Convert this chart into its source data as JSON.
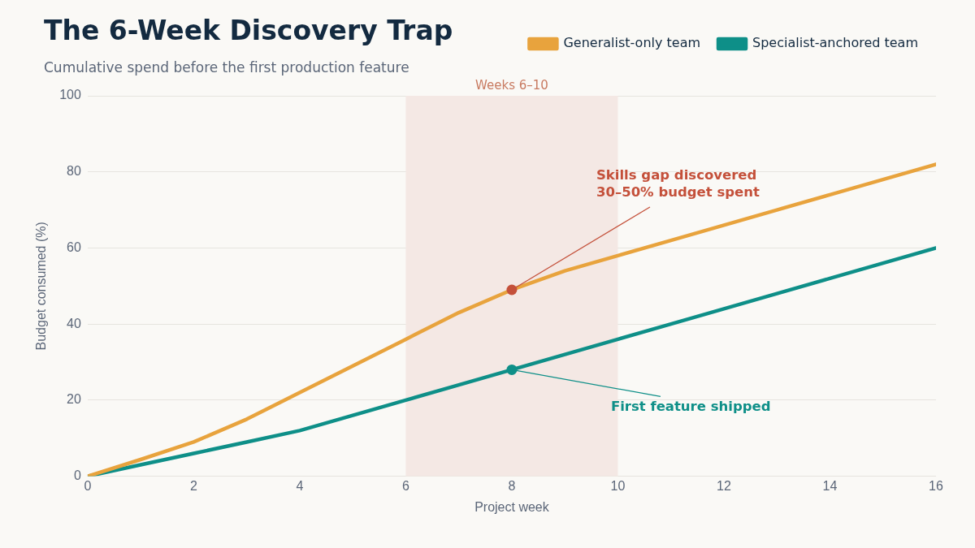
{
  "chart_data": {
    "type": "line",
    "title": "The 6-Week Discovery Trap",
    "subtitle": "Cumulative spend before the first production feature",
    "xlabel": "Project week",
    "ylabel": "Budget consumed (%)",
    "x": [
      0,
      1,
      2,
      3,
      4,
      5,
      6,
      7,
      8,
      9,
      10,
      11,
      12,
      13,
      14,
      15,
      16
    ],
    "series": [
      {
        "name": "Generalist-only team",
        "color": "#e8a33d",
        "values": [
          0,
          4.4,
          9,
          15,
          22,
          29,
          36,
          43,
          49,
          54,
          58,
          62,
          66,
          70,
          74,
          78,
          82
        ]
      },
      {
        "name": "Specialist-anchored team",
        "color": "#0e8f88",
        "values": [
          0,
          3,
          6,
          9,
          12,
          16,
          20,
          24,
          28,
          32,
          36,
          40,
          44,
          48,
          52,
          56,
          60
        ]
      }
    ],
    "xlim": [
      0,
      16
    ],
    "xticks": [
      0,
      2,
      4,
      6,
      8,
      10,
      12,
      14,
      16
    ],
    "ylim": [
      0,
      100
    ],
    "yticks": [
      0,
      20,
      40,
      60,
      80,
      100
    ],
    "bands": [
      {
        "axis": "x",
        "from": 6,
        "to": 10,
        "label": "Weeks 6–10",
        "color": "#f4e8e4"
      }
    ],
    "annotations": [
      {
        "text": "Skills gap discovered\n30–50% budget spent",
        "x": 8,
        "y": 49
      },
      {
        "text": "First feature shipped",
        "x": 8,
        "y": 28
      }
    ],
    "grid": "y",
    "legend": "top right",
    "marker": "none",
    "line_style": "solid"
  }
}
